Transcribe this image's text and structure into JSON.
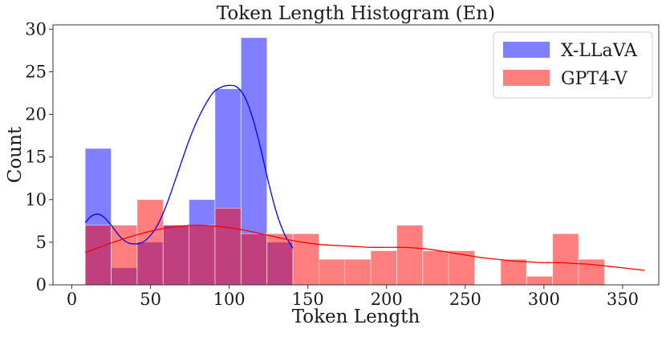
{
  "chart_data": {
    "type": "histogram",
    "title": "Token Length Histogram (En)",
    "xlabel": "Token Length",
    "ylabel": "Count",
    "xlim": [
      -12,
      373
    ],
    "ylim": [
      0,
      30.5
    ],
    "x_ticks": [
      0,
      50,
      100,
      150,
      200,
      250,
      300,
      350
    ],
    "y_ticks": [
      0,
      5,
      10,
      15,
      20,
      25,
      30
    ],
    "grid": false,
    "legend_position": "top-right",
    "series": [
      {
        "name": "X-LLaVA",
        "color": "#0000ff",
        "opacity": 0.5,
        "kde_color": "#0000ff",
        "bins": [
          {
            "x0": 8.5,
            "x1": 25,
            "count": 16
          },
          {
            "x0": 25,
            "x1": 41.5,
            "count": 2
          },
          {
            "x0": 41.5,
            "x1": 58,
            "count": 5
          },
          {
            "x0": 58,
            "x1": 74.5,
            "count": 7
          },
          {
            "x0": 74.5,
            "x1": 91,
            "count": 10
          },
          {
            "x0": 91,
            "x1": 107.5,
            "count": 23
          },
          {
            "x0": 107.5,
            "x1": 124,
            "count": 29
          },
          {
            "x0": 124,
            "x1": 140.5,
            "count": 5
          }
        ],
        "kde": [
          [
            8.5,
            7.3
          ],
          [
            12,
            8.0
          ],
          [
            16,
            8.3
          ],
          [
            20,
            8.0
          ],
          [
            25,
            7.0
          ],
          [
            30,
            5.8
          ],
          [
            35,
            5.0
          ],
          [
            40,
            4.8
          ],
          [
            45,
            5.0
          ],
          [
            50,
            5.8
          ],
          [
            55,
            7.2
          ],
          [
            60,
            9.3
          ],
          [
            65,
            11.9
          ],
          [
            70,
            14.6
          ],
          [
            75,
            17.2
          ],
          [
            80,
            19.4
          ],
          [
            85,
            21.2
          ],
          [
            90,
            22.6
          ],
          [
            95,
            23.2
          ],
          [
            100,
            23.4
          ],
          [
            105,
            23.2
          ],
          [
            110,
            22.0
          ],
          [
            115,
            19.5
          ],
          [
            120,
            16.0
          ],
          [
            125,
            12.0
          ],
          [
            130,
            8.5
          ],
          [
            135,
            6.0
          ],
          [
            140.5,
            4.3
          ]
        ]
      },
      {
        "name": "GPT4-V",
        "color": "#ff0000",
        "opacity": 0.5,
        "kde_color": "#ff0000",
        "bins": [
          {
            "x0": 8.5,
            "x1": 25,
            "count": 7
          },
          {
            "x0": 25,
            "x1": 41.5,
            "count": 7
          },
          {
            "x0": 41.5,
            "x1": 58,
            "count": 10
          },
          {
            "x0": 58,
            "x1": 74.5,
            "count": 7
          },
          {
            "x0": 74.5,
            "x1": 91,
            "count": 7
          },
          {
            "x0": 91,
            "x1": 107.5,
            "count": 9
          },
          {
            "x0": 107.5,
            "x1": 124,
            "count": 6
          },
          {
            "x0": 124,
            "x1": 140.5,
            "count": 6
          },
          {
            "x0": 140.5,
            "x1": 157,
            "count": 6
          },
          {
            "x0": 157,
            "x1": 173.5,
            "count": 3
          },
          {
            "x0": 173.5,
            "x1": 190,
            "count": 3
          },
          {
            "x0": 190,
            "x1": 206.5,
            "count": 4
          },
          {
            "x0": 206.5,
            "x1": 223,
            "count": 7
          },
          {
            "x0": 223,
            "x1": 239.5,
            "count": 4
          },
          {
            "x0": 239.5,
            "x1": 256,
            "count": 4
          },
          {
            "x0": 256,
            "x1": 272.5,
            "count": 0
          },
          {
            "x0": 272.5,
            "x1": 289,
            "count": 3
          },
          {
            "x0": 289,
            "x1": 305.5,
            "count": 1
          },
          {
            "x0": 305.5,
            "x1": 322,
            "count": 6
          },
          {
            "x0": 322,
            "x1": 338.5,
            "count": 3
          }
        ],
        "kde": [
          [
            8.5,
            3.8
          ],
          [
            25,
            4.9
          ],
          [
            40,
            5.8
          ],
          [
            55,
            6.5
          ],
          [
            70,
            6.9
          ],
          [
            80,
            7.0
          ],
          [
            90,
            6.9
          ],
          [
            100,
            6.7
          ],
          [
            110,
            6.4
          ],
          [
            120,
            6.0
          ],
          [
            130,
            5.6
          ],
          [
            140,
            5.2
          ],
          [
            150,
            4.9
          ],
          [
            160,
            4.7
          ],
          [
            170,
            4.6
          ],
          [
            180,
            4.5
          ],
          [
            190,
            4.4
          ],
          [
            200,
            4.4
          ],
          [
            210,
            4.4
          ],
          [
            220,
            4.3
          ],
          [
            230,
            4.1
          ],
          [
            240,
            3.8
          ],
          [
            250,
            3.5
          ],
          [
            260,
            3.2
          ],
          [
            270,
            3.0
          ],
          [
            280,
            2.8
          ],
          [
            290,
            2.7
          ],
          [
            300,
            2.6
          ],
          [
            310,
            2.6
          ],
          [
            320,
            2.5
          ],
          [
            330,
            2.4
          ],
          [
            340,
            2.2
          ],
          [
            350,
            2.0
          ],
          [
            364,
            1.7
          ]
        ]
      }
    ]
  }
}
